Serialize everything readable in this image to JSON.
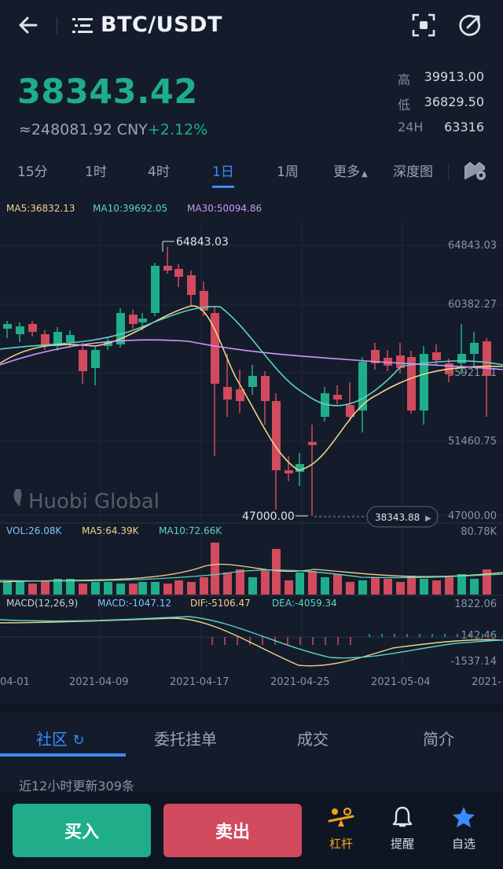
{
  "header": {
    "pair": "BTC/USDT",
    "back_icon": "back-arrow-icon",
    "menu_icon": "menu-list-icon",
    "scan_icon": "scan-icon",
    "share_icon": "share-icon"
  },
  "ticker": {
    "last_price": "38343.42",
    "cny": "≈248081.92 CNY",
    "change": "+2.12%",
    "high_label": "高",
    "high": "39913.00",
    "low_label": "低",
    "low": "36829.50",
    "vol_label": "24H",
    "vol": "63316"
  },
  "intervals": [
    "15分",
    "1时",
    "4时",
    "1日",
    "1周",
    "更多",
    "深度图"
  ],
  "active_interval": "1日",
  "chart_data": {
    "type": "candlestick",
    "indicators": {
      "ma5": "MA5:36832.13",
      "ma10": "MA10:39692.05",
      "ma30": "MA30:50094.86"
    },
    "y_ticks": [
      "64843.03",
      "60382.27",
      "55921.51",
      "51460.75",
      "47000.00"
    ],
    "high_marker": "64843.03",
    "low_marker": "47000.00",
    "current_price_tag": "38343.88",
    "watermark": "Huobi Global",
    "volume": {
      "vol": "VOL:26.08K",
      "ma5": "MA5:64.39K",
      "ma10": "MA10:72.66K",
      "max": "80.78K"
    },
    "macd": {
      "params": "MACD(12,26,9)",
      "macd": "MACD:-1047.12",
      "dif": "DIF:-5106.47",
      "dea": "DEA:-4059.34",
      "ticks": [
        "1822.06",
        "142.46",
        "-1537.14"
      ]
    },
    "x_labels": [
      "04-01",
      "2021-04-09",
      "2021-04-17",
      "2021-04-25",
      "2021-05-04",
      "2021-"
    ],
    "colors": {
      "up": "#1fad8a",
      "down": "#d14a5d",
      "ma5": "#f0d38a",
      "ma10": "#5fd3c0",
      "ma30": "#c99af5"
    }
  },
  "bottom_tabs": [
    "社区",
    "委托挂单",
    "成交",
    "简介"
  ],
  "active_bottom_tab": "社区",
  "update_note": "近12小时更新309条",
  "actions": {
    "buy": "买入",
    "sell": "卖出",
    "leverage": "杠杆",
    "alert": "提醒",
    "watchlist": "自选"
  }
}
